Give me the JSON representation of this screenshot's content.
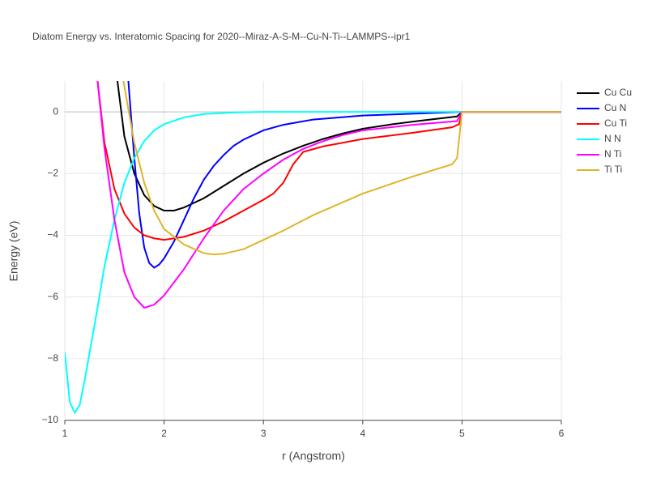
{
  "chart_data": {
    "type": "line",
    "title": "Diatom Energy vs. Interatomic Spacing for 2020--Miraz-A-S-M--Cu-N-Ti--LAMMPS--ipr1",
    "x_label": "r (Angstrom)",
    "y_label": "Energy (eV)",
    "xlim": [
      1,
      6
    ],
    "ylim": [
      -10,
      1
    ],
    "xticks": [
      1,
      2,
      3,
      4,
      5,
      6
    ],
    "yticks": [
      {
        "value": -10,
        "label": "−10"
      },
      {
        "value": -8,
        "label": "−8"
      },
      {
        "value": -6,
        "label": "−6"
      },
      {
        "value": -4,
        "label": "−4"
      },
      {
        "value": -2,
        "label": "−2"
      },
      0
    ],
    "grid": true,
    "legend": "right",
    "series": [
      {
        "name": "Cu Cu",
        "color": "#000000",
        "x": [
          1.53,
          1.6,
          1.7,
          1.8,
          1.9,
          2.0,
          2.1,
          2.2,
          2.4,
          2.6,
          2.8,
          3.0,
          3.2,
          3.4,
          3.6,
          3.8,
          4.0,
          4.3,
          4.6,
          4.95,
          5.0,
          6.0
        ],
        "values": [
          1,
          -0.8,
          -2.0,
          -2.7,
          -3.05,
          -3.2,
          -3.2,
          -3.1,
          -2.8,
          -2.4,
          -2.0,
          -1.65,
          -1.35,
          -1.1,
          -0.88,
          -0.7,
          -0.55,
          -0.4,
          -0.28,
          -0.15,
          0,
          0
        ]
      },
      {
        "name": "Cu N",
        "color": "#0000ff",
        "x": [
          1.64,
          1.7,
          1.75,
          1.8,
          1.85,
          1.9,
          1.95,
          2.0,
          2.1,
          2.2,
          2.3,
          2.4,
          2.5,
          2.6,
          2.7,
          2.8,
          3.0,
          3.2,
          3.5,
          4.0,
          4.5,
          5.0,
          6.0
        ],
        "values": [
          1,
          -1.5,
          -3.3,
          -4.4,
          -4.9,
          -5.05,
          -4.95,
          -4.75,
          -4.2,
          -3.5,
          -2.8,
          -2.2,
          -1.75,
          -1.4,
          -1.1,
          -0.9,
          -0.6,
          -0.42,
          -0.25,
          -0.12,
          -0.06,
          0,
          0
        ]
      },
      {
        "name": "Cu Ti",
        "color": "#ff0000",
        "x": [
          1.33,
          1.4,
          1.5,
          1.6,
          1.7,
          1.8,
          1.9,
          2.0,
          2.1,
          2.2,
          2.4,
          2.6,
          2.8,
          3.0,
          3.1,
          3.2,
          3.3,
          3.4,
          3.6,
          4.0,
          4.5,
          4.9,
          4.97,
          5.0,
          6.0
        ],
        "values": [
          1,
          -1,
          -2.5,
          -3.3,
          -3.75,
          -4.0,
          -4.1,
          -4.15,
          -4.1,
          -4.05,
          -3.85,
          -3.55,
          -3.2,
          -2.85,
          -2.65,
          -2.3,
          -1.7,
          -1.3,
          -1.12,
          -0.88,
          -0.68,
          -0.5,
          -0.4,
          0,
          0
        ]
      },
      {
        "name": "N N",
        "color": "#00ffff",
        "x": [
          1.0,
          1.05,
          1.1,
          1.15,
          1.2,
          1.3,
          1.4,
          1.5,
          1.6,
          1.7,
          1.8,
          1.9,
          2.0,
          2.2,
          2.4,
          2.7,
          3.0,
          6.0
        ],
        "values": [
          -7.8,
          -9.4,
          -9.75,
          -9.5,
          -8.7,
          -6.9,
          -5.0,
          -3.5,
          -2.3,
          -1.5,
          -0.95,
          -0.6,
          -0.4,
          -0.18,
          -0.07,
          -0.02,
          0,
          0
        ]
      },
      {
        "name": "N Ti",
        "color": "#ff00ff",
        "x": [
          1.33,
          1.4,
          1.5,
          1.6,
          1.7,
          1.8,
          1.9,
          2.0,
          2.2,
          2.4,
          2.6,
          2.8,
          3.0,
          3.2,
          3.4,
          3.6,
          3.8,
          4.0,
          4.5,
          4.95,
          5.0,
          6.0
        ],
        "values": [
          1,
          -1.2,
          -3.5,
          -5.2,
          -6.0,
          -6.35,
          -6.25,
          -5.95,
          -5.1,
          -4.1,
          -3.2,
          -2.5,
          -2.0,
          -1.55,
          -1.2,
          -0.95,
          -0.75,
          -0.6,
          -0.42,
          -0.3,
          0,
          0
        ]
      },
      {
        "name": "Ti Ti",
        "color": "#e0b428",
        "x": [
          1.59,
          1.7,
          1.8,
          1.9,
          2.0,
          2.2,
          2.4,
          2.5,
          2.6,
          2.8,
          3.0,
          3.2,
          3.5,
          4.0,
          4.5,
          4.9,
          4.95,
          5.0,
          6.0
        ],
        "values": [
          1,
          -1.0,
          -2.3,
          -3.2,
          -3.8,
          -4.3,
          -4.58,
          -4.62,
          -4.6,
          -4.45,
          -4.15,
          -3.85,
          -3.35,
          -2.65,
          -2.1,
          -1.7,
          -1.5,
          0,
          0
        ]
      }
    ]
  }
}
